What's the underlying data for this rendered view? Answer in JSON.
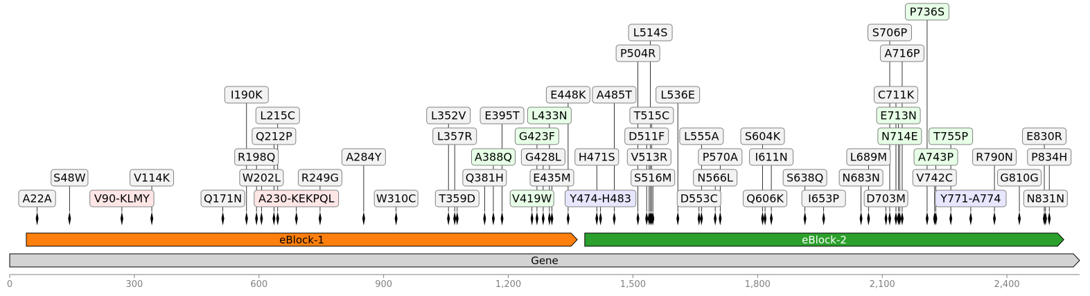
{
  "axis": {
    "min": 0,
    "max": 2575,
    "ticks": [
      0,
      300,
      600,
      900,
      1200,
      1500,
      1800,
      2100,
      2400
    ],
    "tick_labels": [
      "0",
      "300",
      "600",
      "900",
      "1,200",
      "1,500",
      "1,800",
      "2,100",
      "2,400"
    ]
  },
  "features": [
    {
      "label": "eBlock-1",
      "start": 40,
      "end": 1366,
      "color": "#ff7f0e",
      "text_color": "#000000"
    },
    {
      "label": "eBlock-2",
      "start": 1384,
      "end": 2537,
      "color": "#2ca02c",
      "text_color": "#ffffff"
    },
    {
      "label": "Gene",
      "start": 0,
      "end": 2575,
      "color": "#d3d3d3",
      "text_color": "#000000"
    }
  ],
  "mutation_colors": {
    "substitution": "#f2f2f2",
    "deletion": "#ffe6e6",
    "insertion": "#e6ffe6",
    "block": "#e6e6ff"
  },
  "mutations": [
    {
      "label": "A22A",
      "pos": 66,
      "level": 0,
      "kind": "substitution"
    },
    {
      "label": "S48W",
      "pos": 144,
      "level": 1,
      "kind": "substitution"
    },
    {
      "label": "V90-KLMY",
      "pos": 270,
      "level": 0,
      "kind": "deletion"
    },
    {
      "label": "V114K",
      "pos": 342,
      "level": 1,
      "kind": "substitution"
    },
    {
      "label": "Q171N",
      "pos": 513,
      "level": 0,
      "kind": "substitution"
    },
    {
      "label": "I190K",
      "pos": 570,
      "level": 5,
      "kind": "substitution"
    },
    {
      "label": "R198Q",
      "pos": 594,
      "level": 2,
      "kind": "substitution"
    },
    {
      "label": "W202L",
      "pos": 606,
      "level": 1,
      "kind": "substitution"
    },
    {
      "label": "Q212P",
      "pos": 636,
      "level": 3,
      "kind": "substitution"
    },
    {
      "label": "L215C",
      "pos": 645,
      "level": 4,
      "kind": "substitution"
    },
    {
      "label": "A230-KEKPQL",
      "pos": 690,
      "level": 0,
      "kind": "deletion"
    },
    {
      "label": "R249G",
      "pos": 747,
      "level": 1,
      "kind": "substitution"
    },
    {
      "label": "A284Y",
      "pos": 852,
      "level": 2,
      "kind": "substitution"
    },
    {
      "label": "W310C",
      "pos": 930,
      "level": 0,
      "kind": "substitution"
    },
    {
      "label": "L352V",
      "pos": 1056,
      "level": 4,
      "kind": "substitution"
    },
    {
      "label": "L357R",
      "pos": 1071,
      "level": 3,
      "kind": "substitution"
    },
    {
      "label": "T359D",
      "pos": 1077,
      "level": 0,
      "kind": "substitution"
    },
    {
      "label": "Q381H",
      "pos": 1143,
      "level": 1,
      "kind": "substitution"
    },
    {
      "label": "A388Q",
      "pos": 1164,
      "level": 2,
      "kind": "insertion"
    },
    {
      "label": "E395T",
      "pos": 1185,
      "level": 4,
      "kind": "substitution"
    },
    {
      "label": "V419W",
      "pos": 1257,
      "level": 0,
      "kind": "insertion"
    },
    {
      "label": "G423F",
      "pos": 1269,
      "level": 3,
      "kind": "insertion"
    },
    {
      "label": "G428L",
      "pos": 1284,
      "level": 2,
      "kind": "substitution"
    },
    {
      "label": "L433N",
      "pos": 1299,
      "level": 4,
      "kind": "insertion"
    },
    {
      "label": "E435M",
      "pos": 1305,
      "level": 1,
      "kind": "substitution"
    },
    {
      "label": "E448K",
      "pos": 1344,
      "level": 5,
      "kind": "substitution"
    },
    {
      "label": "H471S",
      "pos": 1413,
      "level": 2,
      "kind": "substitution"
    },
    {
      "label": "Y474-H483",
      "pos": 1422,
      "level": 0,
      "kind": "block"
    },
    {
      "label": "A485T",
      "pos": 1455,
      "level": 5,
      "kind": "substitution"
    },
    {
      "label": "P504R",
      "pos": 1512,
      "level": 7,
      "kind": "substitution"
    },
    {
      "label": "V513R",
      "pos": 1539,
      "level": 2,
      "kind": "substitution"
    },
    {
      "label": "L514S",
      "pos": 1542,
      "level": 8,
      "kind": "substitution"
    },
    {
      "label": "T515C",
      "pos": 1545,
      "level": 4,
      "kind": "substitution"
    },
    {
      "label": "D511F",
      "pos": 1533,
      "level": 3,
      "kind": "substitution"
    },
    {
      "label": "S516M",
      "pos": 1548,
      "level": 1,
      "kind": "substitution"
    },
    {
      "label": "L536E",
      "pos": 1608,
      "level": 5,
      "kind": "substitution"
    },
    {
      "label": "D553C",
      "pos": 1659,
      "level": 0,
      "kind": "substitution"
    },
    {
      "label": "L555A",
      "pos": 1665,
      "level": 3,
      "kind": "substitution"
    },
    {
      "label": "N566L",
      "pos": 1698,
      "level": 1,
      "kind": "substitution"
    },
    {
      "label": "P570A",
      "pos": 1710,
      "level": 2,
      "kind": "substitution"
    },
    {
      "label": "S604K",
      "pos": 1812,
      "level": 3,
      "kind": "substitution"
    },
    {
      "label": "Q606K",
      "pos": 1818,
      "level": 0,
      "kind": "substitution"
    },
    {
      "label": "I611N",
      "pos": 1833,
      "level": 2,
      "kind": "substitution"
    },
    {
      "label": "S638Q",
      "pos": 1914,
      "level": 1,
      "kind": "substitution"
    },
    {
      "label": "I653P",
      "pos": 1959,
      "level": 0,
      "kind": "substitution"
    },
    {
      "label": "N683N",
      "pos": 2049,
      "level": 1,
      "kind": "substitution"
    },
    {
      "label": "L689M",
      "pos": 2067,
      "level": 2,
      "kind": "substitution"
    },
    {
      "label": "D703M",
      "pos": 2109,
      "level": 0,
      "kind": "substitution"
    },
    {
      "label": "S706P",
      "pos": 2118,
      "level": 8,
      "kind": "substitution"
    },
    {
      "label": "C711K",
      "pos": 2133,
      "level": 5,
      "kind": "substitution"
    },
    {
      "label": "E713N",
      "pos": 2139,
      "level": 4,
      "kind": "insertion"
    },
    {
      "label": "N714E",
      "pos": 2142,
      "level": 3,
      "kind": "insertion"
    },
    {
      "label": "A716P",
      "pos": 2148,
      "level": 7,
      "kind": "substitution"
    },
    {
      "label": "P736S",
      "pos": 2208,
      "level": 9,
      "kind": "insertion"
    },
    {
      "label": "V742C",
      "pos": 2226,
      "level": 1,
      "kind": "substitution"
    },
    {
      "label": "A743P",
      "pos": 2229,
      "level": 2,
      "kind": "insertion"
    },
    {
      "label": "T755P",
      "pos": 2265,
      "level": 3,
      "kind": "insertion"
    },
    {
      "label": "Y771-A774",
      "pos": 2313,
      "level": 0,
      "kind": "block"
    },
    {
      "label": "R790N",
      "pos": 2370,
      "level": 2,
      "kind": "substitution"
    },
    {
      "label": "G810G",
      "pos": 2430,
      "level": 1,
      "kind": "substitution"
    },
    {
      "label": "E830R",
      "pos": 2490,
      "level": 3,
      "kind": "substitution"
    },
    {
      "label": "N831N",
      "pos": 2493,
      "level": 0,
      "kind": "substitution"
    },
    {
      "label": "P834H",
      "pos": 2502,
      "level": 2,
      "kind": "substitution"
    }
  ]
}
